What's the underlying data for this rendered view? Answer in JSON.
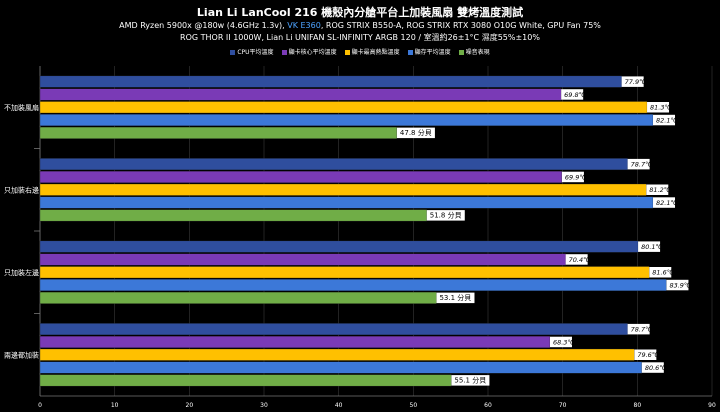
{
  "header": {
    "title": "Lian Li LanCool 216 機殼內分艙平台上加裝風扇 雙烤溫度測試",
    "line1_a": "AMD Ryzen 5900x @180w (4.6GHz 1.3v), ",
    "line1_hl": "VK E360",
    "line1_b": ", ROG STRIX B550-A, ROG STRIX RTX 3080 O10G White, GPU Fan 75%",
    "line2": "ROG THOR II 1000W, Lian Li UNIFAN SL-INFINITY ARGB 120 / 室溫約26±1°C 濕度55%±10%"
  },
  "colors": {
    "background": "#000000",
    "highlight_text": "#4ea3ff"
  },
  "chart_data": {
    "type": "bar",
    "orientation": "horizontal",
    "categories": [
      "不加裝風扇",
      "只加裝右邊",
      "只加裝左邊",
      "兩邊都加裝"
    ],
    "series": [
      {
        "name": "CPU平均溫度",
        "color": "#2f4e9e",
        "values": [
          77.9,
          78.7,
          80.1,
          78.7
        ],
        "labels": [
          "77.9℃",
          "78.7℃",
          "80.1℃",
          "78.7℃"
        ]
      },
      {
        "name": "顯卡核心平均溫度",
        "color": "#7a3ab6",
        "values": [
          69.8,
          69.9,
          70.4,
          68.3
        ],
        "labels": [
          "69.8℃",
          "69.9℃",
          "70.4℃",
          "68.3℃"
        ]
      },
      {
        "name": "顯卡最高熱點溫度",
        "color": "#ffc000",
        "values": [
          81.3,
          81.2,
          81.6,
          79.6
        ],
        "labels": [
          "81.3℃",
          "81.2℃",
          "81.6℃",
          "79.6℃"
        ]
      },
      {
        "name": "顯存平均溫度",
        "color": "#3c78d8",
        "values": [
          82.1,
          82.1,
          83.9,
          80.6
        ],
        "labels": [
          "82.1℃",
          "82.1℃",
          "83.9℃",
          "80.6℃"
        ]
      },
      {
        "name": "噪音表現",
        "color": "#70ad47",
        "values": [
          47.8,
          51.8,
          53.1,
          55.1
        ],
        "labels": [
          "47.8 分貝",
          "51.8 分貝",
          "53.1 分貝",
          "55.1 分貝"
        ]
      }
    ],
    "xlim": [
      0,
      90
    ],
    "xticks": [
      "0",
      "10",
      "20",
      "30",
      "40",
      "50",
      "60",
      "70",
      "80",
      "90"
    ],
    "grid": true,
    "legend_position": "top"
  }
}
